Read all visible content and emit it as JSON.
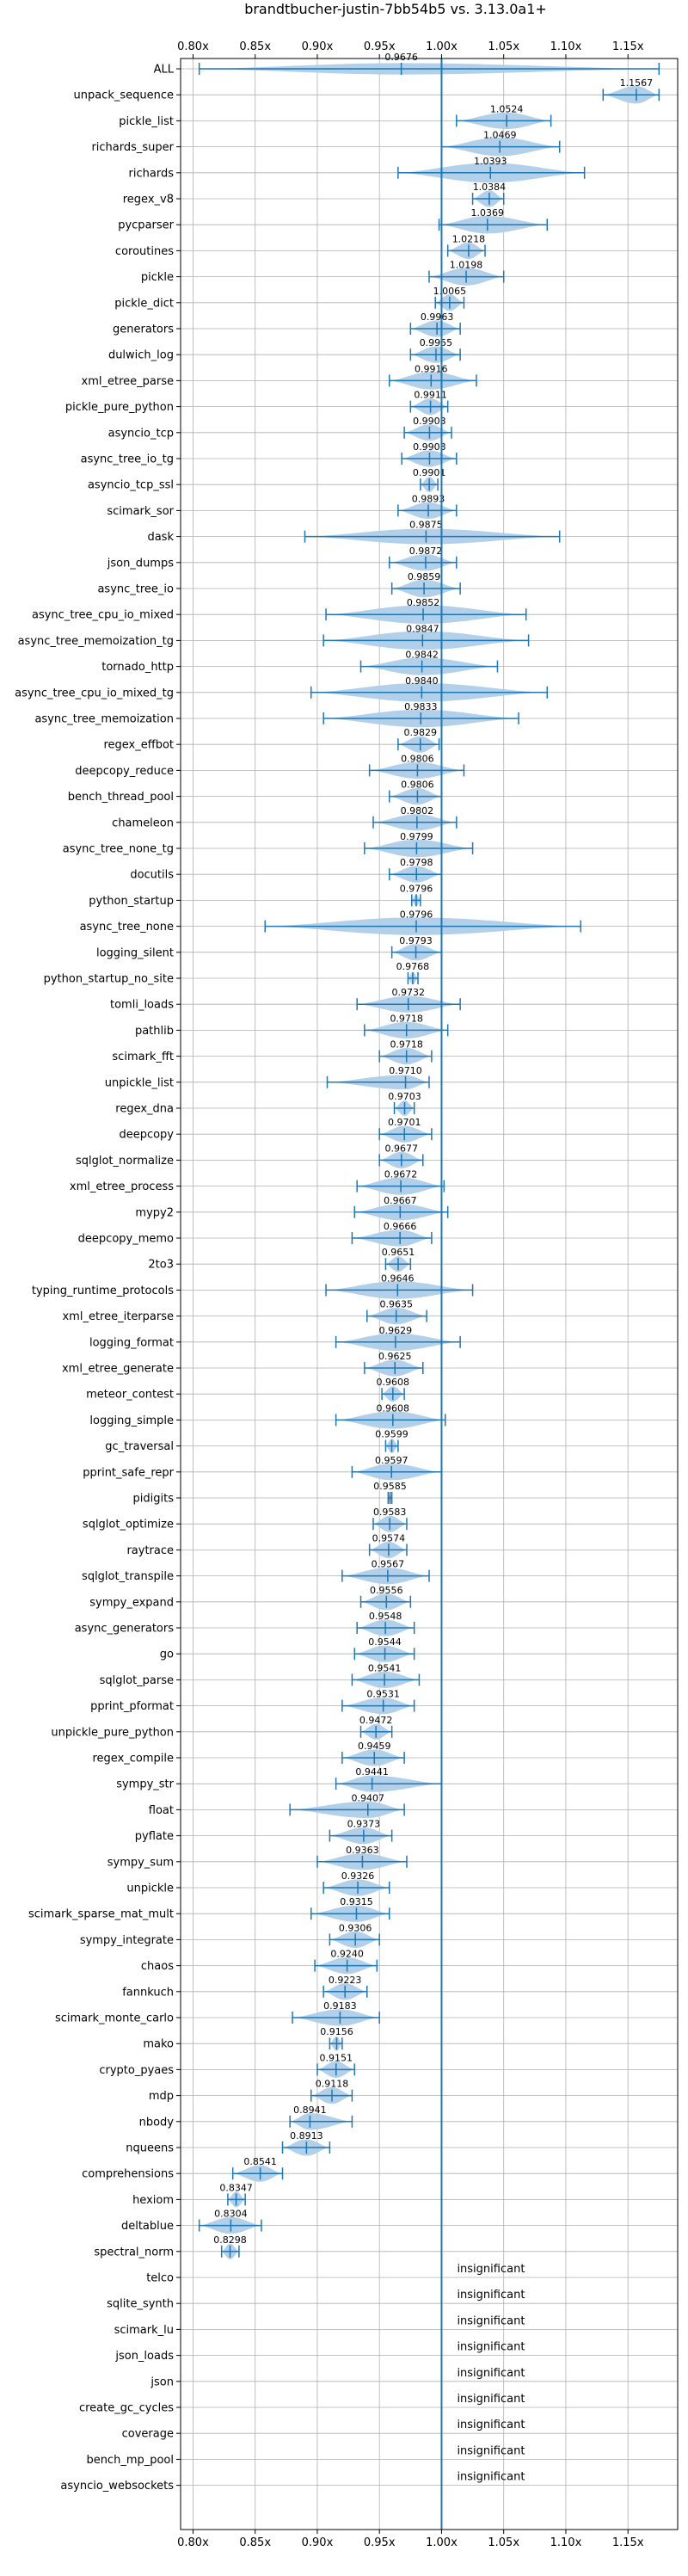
{
  "chart_data": {
    "type": "violin",
    "title": "brandtbucher-justin-7bb54b5 vs. 3.13.0a1+",
    "xlabel": "",
    "ylabel": "",
    "xlim": [
      0.79,
      1.19
    ],
    "x_ticks": [
      0.8,
      0.85,
      0.9,
      0.95,
      1.0,
      1.05,
      1.1,
      1.15
    ],
    "x_tick_labels": [
      "0.80x",
      "0.85x",
      "0.90x",
      "0.95x",
      "1.00x",
      "1.05x",
      "1.10x",
      "1.15x"
    ],
    "reference_line": 1.0,
    "grid": true,
    "colors": {
      "violin": "#aecde8",
      "whisker": "#1f77b4",
      "reference": "#1f77b4",
      "grid": "#b0b0b0"
    },
    "insignificant_label": "insignificant",
    "benchmarks": [
      {
        "name": "ALL",
        "label": "0.9676",
        "value": 0.9676,
        "lo": 0.805,
        "hi": 1.175,
        "w": 0.55
      },
      {
        "name": "unpack_sequence",
        "label": "1.1567",
        "value": 1.1567,
        "lo": 1.13,
        "hi": 1.175,
        "w": 0.85
      },
      {
        "name": "pickle_list",
        "label": "1.0524",
        "value": 1.0524,
        "lo": 1.012,
        "hi": 1.088,
        "w": 0.8
      },
      {
        "name": "richards_super",
        "label": "1.0469",
        "value": 1.0469,
        "lo": 1.0,
        "hi": 1.095,
        "w": 0.9
      },
      {
        "name": "richards",
        "label": "1.0393",
        "value": 1.0393,
        "lo": 0.965,
        "hi": 1.115,
        "w": 0.95
      },
      {
        "name": "regex_v8",
        "label": "1.0384",
        "value": 1.0384,
        "lo": 1.025,
        "hi": 1.05,
        "w": 0.8
      },
      {
        "name": "pycparser",
        "label": "1.0369",
        "value": 1.0369,
        "lo": 0.998,
        "hi": 1.085,
        "w": 0.85
      },
      {
        "name": "coroutines",
        "label": "1.0218",
        "value": 1.0218,
        "lo": 1.005,
        "hi": 1.035,
        "w": 0.8
      },
      {
        "name": "pickle",
        "label": "1.0198",
        "value": 1.0198,
        "lo": 0.99,
        "hi": 1.05,
        "w": 0.85
      },
      {
        "name": "pickle_dict",
        "label": "1.0065",
        "value": 1.0065,
        "lo": 0.995,
        "hi": 1.018,
        "w": 0.8
      },
      {
        "name": "generators",
        "label": "0.9963",
        "value": 0.9963,
        "lo": 0.975,
        "hi": 1.015,
        "w": 0.8
      },
      {
        "name": "dulwich_log",
        "label": "0.9955",
        "value": 0.9955,
        "lo": 0.975,
        "hi": 1.015,
        "w": 0.8
      },
      {
        "name": "xml_etree_parse",
        "label": "0.9916",
        "value": 0.9916,
        "lo": 0.958,
        "hi": 1.028,
        "w": 0.85
      },
      {
        "name": "pickle_pure_python",
        "label": "0.9911",
        "value": 0.9911,
        "lo": 0.975,
        "hi": 1.005,
        "w": 0.8
      },
      {
        "name": "asyncio_tcp",
        "label": "0.9903",
        "value": 0.9903,
        "lo": 0.97,
        "hi": 1.008,
        "w": 0.8
      },
      {
        "name": "async_tree_io_tg",
        "label": "0.9903",
        "value": 0.9903,
        "lo": 0.968,
        "hi": 1.012,
        "w": 0.8
      },
      {
        "name": "asyncio_tcp_ssl",
        "label": "0.9901",
        "value": 0.9901,
        "lo": 0.983,
        "hi": 0.997,
        "w": 0.75
      },
      {
        "name": "scimark_sor",
        "label": "0.9893",
        "value": 0.9893,
        "lo": 0.965,
        "hi": 1.012,
        "w": 0.8
      },
      {
        "name": "dask",
        "label": "0.9875",
        "value": 0.9875,
        "lo": 0.89,
        "hi": 1.095,
        "w": 0.75
      },
      {
        "name": "json_dumps",
        "label": "0.9872",
        "value": 0.9872,
        "lo": 0.958,
        "hi": 1.012,
        "w": 0.8
      },
      {
        "name": "async_tree_io",
        "label": "0.9859",
        "value": 0.9859,
        "lo": 0.96,
        "hi": 1.015,
        "w": 0.85
      },
      {
        "name": "async_tree_cpu_io_mixed",
        "label": "0.9852",
        "value": 0.9852,
        "lo": 0.907,
        "hi": 1.068,
        "w": 0.9
      },
      {
        "name": "async_tree_memoization_tg",
        "label": "0.9847",
        "value": 0.9847,
        "lo": 0.905,
        "hi": 1.07,
        "w": 0.9
      },
      {
        "name": "tornado_http",
        "label": "0.9842",
        "value": 0.9842,
        "lo": 0.935,
        "hi": 1.045,
        "w": 0.85
      },
      {
        "name": "async_tree_cpu_io_mixed_tg",
        "label": "0.9840",
        "value": 0.984,
        "lo": 0.895,
        "hi": 1.085,
        "w": 0.9
      },
      {
        "name": "async_tree_memoization",
        "label": "0.9833",
        "value": 0.9833,
        "lo": 0.905,
        "hi": 1.062,
        "w": 0.85
      },
      {
        "name": "regex_effbot",
        "label": "0.9829",
        "value": 0.9829,
        "lo": 0.965,
        "hi": 0.998,
        "w": 0.8
      },
      {
        "name": "deepcopy_reduce",
        "label": "0.9806",
        "value": 0.9806,
        "lo": 0.942,
        "hi": 1.018,
        "w": 0.8
      },
      {
        "name": "bench_thread_pool",
        "label": "0.9806",
        "value": 0.9806,
        "lo": 0.958,
        "hi": 1.0,
        "w": 0.8
      },
      {
        "name": "chameleon",
        "label": "0.9802",
        "value": 0.9802,
        "lo": 0.945,
        "hi": 1.012,
        "w": 0.8
      },
      {
        "name": "async_tree_none_tg",
        "label": "0.9799",
        "value": 0.9799,
        "lo": 0.938,
        "hi": 1.025,
        "w": 0.85
      },
      {
        "name": "docutils",
        "label": "0.9798",
        "value": 0.9798,
        "lo": 0.958,
        "hi": 1.0,
        "w": 0.8
      },
      {
        "name": "python_startup",
        "label": "0.9796",
        "value": 0.9796,
        "lo": 0.976,
        "hi": 0.983,
        "w": 0.6
      },
      {
        "name": "async_tree_none",
        "label": "0.9796",
        "value": 0.9796,
        "lo": 0.858,
        "hi": 1.112,
        "w": 0.85
      },
      {
        "name": "logging_silent",
        "label": "0.9793",
        "value": 0.9793,
        "lo": 0.96,
        "hi": 1.0,
        "w": 0.8
      },
      {
        "name": "python_startup_no_site",
        "label": "0.9768",
        "value": 0.9768,
        "lo": 0.973,
        "hi": 0.981,
        "w": 0.6
      },
      {
        "name": "tomli_loads",
        "label": "0.9732",
        "value": 0.9732,
        "lo": 0.932,
        "hi": 1.015,
        "w": 0.8
      },
      {
        "name": "pathlib",
        "label": "0.9718",
        "value": 0.9718,
        "lo": 0.938,
        "hi": 1.005,
        "w": 0.8
      },
      {
        "name": "scimark_fft",
        "label": "0.9718",
        "value": 0.9718,
        "lo": 0.95,
        "hi": 0.992,
        "w": 0.8
      },
      {
        "name": "unpickle_list",
        "label": "0.9710",
        "value": 0.971,
        "lo": 0.908,
        "hi": 0.99,
        "w": 0.7
      },
      {
        "name": "regex_dna",
        "label": "0.9703",
        "value": 0.9703,
        "lo": 0.962,
        "hi": 0.978,
        "w": 0.75
      },
      {
        "name": "deepcopy",
        "label": "0.9701",
        "value": 0.9701,
        "lo": 0.95,
        "hi": 0.992,
        "w": 0.8
      },
      {
        "name": "sqlglot_normalize",
        "label": "0.9677",
        "value": 0.9677,
        "lo": 0.95,
        "hi": 0.985,
        "w": 0.8
      },
      {
        "name": "xml_etree_process",
        "label": "0.9672",
        "value": 0.9672,
        "lo": 0.932,
        "hi": 1.002,
        "w": 0.85
      },
      {
        "name": "mypy2",
        "label": "0.9667",
        "value": 0.9667,
        "lo": 0.93,
        "hi": 1.005,
        "w": 0.8
      },
      {
        "name": "deepcopy_memo",
        "label": "0.9666",
        "value": 0.9666,
        "lo": 0.928,
        "hi": 0.992,
        "w": 0.8
      },
      {
        "name": "2to3",
        "label": "0.9651",
        "value": 0.9651,
        "lo": 0.955,
        "hi": 0.975,
        "w": 0.75
      },
      {
        "name": "typing_runtime_protocols",
        "label": "0.9646",
        "value": 0.9646,
        "lo": 0.907,
        "hi": 1.025,
        "w": 0.85
      },
      {
        "name": "xml_etree_iterparse",
        "label": "0.9635",
        "value": 0.9635,
        "lo": 0.94,
        "hi": 0.988,
        "w": 0.8
      },
      {
        "name": "logging_format",
        "label": "0.9629",
        "value": 0.9629,
        "lo": 0.915,
        "hi": 1.015,
        "w": 0.85
      },
      {
        "name": "xml_etree_generate",
        "label": "0.9625",
        "value": 0.9625,
        "lo": 0.938,
        "hi": 0.985,
        "w": 0.8
      },
      {
        "name": "meteor_contest",
        "label": "0.9608",
        "value": 0.9608,
        "lo": 0.952,
        "hi": 0.97,
        "w": 0.75
      },
      {
        "name": "logging_simple",
        "label": "0.9608",
        "value": 0.9608,
        "lo": 0.915,
        "hi": 1.003,
        "w": 0.85
      },
      {
        "name": "gc_traversal",
        "label": "0.9599",
        "value": 0.9599,
        "lo": 0.955,
        "hi": 0.965,
        "w": 0.7
      },
      {
        "name": "pprint_safe_repr",
        "label": "0.9597",
        "value": 0.9597,
        "lo": 0.928,
        "hi": 1.0,
        "w": 0.8
      },
      {
        "name": "pidigits",
        "label": "0.9585",
        "value": 0.9585,
        "lo": 0.957,
        "hi": 0.96,
        "w": 0.5
      },
      {
        "name": "sqlglot_optimize",
        "label": "0.9583",
        "value": 0.9583,
        "lo": 0.945,
        "hi": 0.972,
        "w": 0.8
      },
      {
        "name": "raytrace",
        "label": "0.9574",
        "value": 0.9574,
        "lo": 0.942,
        "hi": 0.972,
        "w": 0.8
      },
      {
        "name": "sqlglot_transpile",
        "label": "0.9567",
        "value": 0.9567,
        "lo": 0.92,
        "hi": 0.99,
        "w": 0.8
      },
      {
        "name": "sympy_expand",
        "label": "0.9556",
        "value": 0.9556,
        "lo": 0.935,
        "hi": 0.975,
        "w": 0.8
      },
      {
        "name": "async_generators",
        "label": "0.9548",
        "value": 0.9548,
        "lo": 0.932,
        "hi": 0.978,
        "w": 0.8
      },
      {
        "name": "go",
        "label": "0.9544",
        "value": 0.9544,
        "lo": 0.93,
        "hi": 0.978,
        "w": 0.8
      },
      {
        "name": "sqlglot_parse",
        "label": "0.9541",
        "value": 0.9541,
        "lo": 0.928,
        "hi": 0.982,
        "w": 0.8
      },
      {
        "name": "pprint_pformat",
        "label": "0.9531",
        "value": 0.9531,
        "lo": 0.92,
        "hi": 0.978,
        "w": 0.8
      },
      {
        "name": "unpickle_pure_python",
        "label": "0.9472",
        "value": 0.9472,
        "lo": 0.935,
        "hi": 0.96,
        "w": 0.75
      },
      {
        "name": "regex_compile",
        "label": "0.9459",
        "value": 0.9459,
        "lo": 0.92,
        "hi": 0.97,
        "w": 0.8
      },
      {
        "name": "sympy_str",
        "label": "0.9441",
        "value": 0.9441,
        "lo": 0.915,
        "hi": 1.0,
        "w": 0.8
      },
      {
        "name": "float",
        "label": "0.9407",
        "value": 0.9407,
        "lo": 0.878,
        "hi": 0.97,
        "w": 0.8
      },
      {
        "name": "pyflate",
        "label": "0.9373",
        "value": 0.9373,
        "lo": 0.91,
        "hi": 0.96,
        "w": 0.8
      },
      {
        "name": "sympy_sum",
        "label": "0.9363",
        "value": 0.9363,
        "lo": 0.9,
        "hi": 0.972,
        "w": 0.8
      },
      {
        "name": "unpickle",
        "label": "0.9326",
        "value": 0.9326,
        "lo": 0.905,
        "hi": 0.958,
        "w": 0.8
      },
      {
        "name": "scimark_sparse_mat_mult",
        "label": "0.9315",
        "value": 0.9315,
        "lo": 0.895,
        "hi": 0.958,
        "w": 0.8
      },
      {
        "name": "sympy_integrate",
        "label": "0.9306",
        "value": 0.9306,
        "lo": 0.91,
        "hi": 0.95,
        "w": 0.8
      },
      {
        "name": "chaos",
        "label": "0.9240",
        "value": 0.924,
        "lo": 0.898,
        "hi": 0.948,
        "w": 0.8
      },
      {
        "name": "fannkuch",
        "label": "0.9223",
        "value": 0.9223,
        "lo": 0.905,
        "hi": 0.94,
        "w": 0.8
      },
      {
        "name": "scimark_monte_carlo",
        "label": "0.9183",
        "value": 0.9183,
        "lo": 0.88,
        "hi": 0.95,
        "w": 0.8
      },
      {
        "name": "mako",
        "label": "0.9156",
        "value": 0.9156,
        "lo": 0.91,
        "hi": 0.92,
        "w": 0.7
      },
      {
        "name": "crypto_pyaes",
        "label": "0.9151",
        "value": 0.9151,
        "lo": 0.9,
        "hi": 0.93,
        "w": 0.8
      },
      {
        "name": "mdp",
        "label": "0.9118",
        "value": 0.9118,
        "lo": 0.895,
        "hi": 0.928,
        "w": 0.8
      },
      {
        "name": "nbody",
        "label": "0.8941",
        "value": 0.8941,
        "lo": 0.878,
        "hi": 0.928,
        "w": 0.8
      },
      {
        "name": "nqueens",
        "label": "0.8913",
        "value": 0.8913,
        "lo": 0.872,
        "hi": 0.91,
        "w": 0.8
      },
      {
        "name": "comprehensions",
        "label": "0.8541",
        "value": 0.8541,
        "lo": 0.832,
        "hi": 0.872,
        "w": 0.8
      },
      {
        "name": "hexiom",
        "label": "0.8347",
        "value": 0.8347,
        "lo": 0.828,
        "hi": 0.842,
        "w": 0.75
      },
      {
        "name": "deltablue",
        "label": "0.8304",
        "value": 0.8304,
        "lo": 0.805,
        "hi": 0.855,
        "w": 0.8
      },
      {
        "name": "spectral_norm",
        "label": "0.8298",
        "value": 0.8298,
        "lo": 0.823,
        "hi": 0.837,
        "w": 0.75
      },
      {
        "name": "telco",
        "label": "",
        "value": null
      },
      {
        "name": "sqlite_synth",
        "label": "",
        "value": null
      },
      {
        "name": "scimark_lu",
        "label": "",
        "value": null
      },
      {
        "name": "json_loads",
        "label": "",
        "value": null
      },
      {
        "name": "json",
        "label": "",
        "value": null
      },
      {
        "name": "create_gc_cycles",
        "label": "",
        "value": null
      },
      {
        "name": "coverage",
        "label": "",
        "value": null
      },
      {
        "name": "bench_mp_pool",
        "label": "",
        "value": null
      },
      {
        "name": "asyncio_websockets",
        "label": "",
        "value": null
      }
    ]
  }
}
